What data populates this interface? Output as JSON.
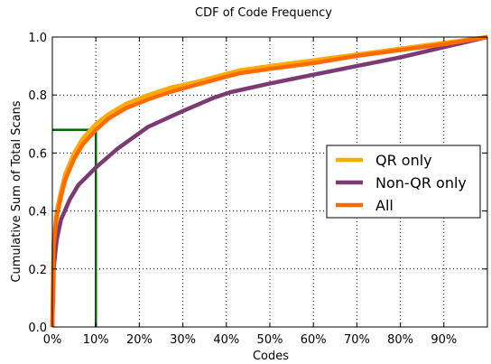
{
  "chart_data": {
    "type": "line",
    "title": "CDF of Code Frequency",
    "xlabel": "Codes",
    "ylabel": "Cumulative Sum of Total Scans",
    "xlim": [
      0,
      100
    ],
    "ylim": [
      0,
      1.0
    ],
    "x_ticks": [
      0,
      10,
      20,
      30,
      40,
      50,
      60,
      70,
      80,
      90
    ],
    "x_tick_labels": [
      "0%",
      "10%",
      "20%",
      "30%",
      "40%",
      "50%",
      "60%",
      "70%",
      "80%",
      "90%"
    ],
    "y_ticks": [
      0.0,
      0.2,
      0.4,
      0.6,
      0.8,
      1.0
    ],
    "y_tick_labels": [
      "0.0",
      "0.2",
      "0.4",
      "0.6",
      "0.8",
      "1.0"
    ],
    "grid": true,
    "legend_position": "center-right",
    "series": [
      {
        "name": "QR only",
        "color": "#ffaa00",
        "x": [
          0,
          0.3,
          1,
          2,
          3,
          5,
          7,
          10,
          13,
          17,
          22,
          27,
          33,
          38,
          43,
          50,
          60,
          70,
          80,
          90,
          100
        ],
        "y": [
          0,
          0.3,
          0.4,
          0.47,
          0.53,
          0.6,
          0.65,
          0.7,
          0.735,
          0.77,
          0.8,
          0.825,
          0.845,
          0.865,
          0.885,
          0.9,
          0.92,
          0.94,
          0.96,
          0.98,
          1.0
        ]
      },
      {
        "name": "Non-QR only",
        "color": "#7b3a73",
        "x": [
          0,
          0.3,
          1,
          2,
          4,
          6,
          8,
          10,
          15,
          22,
          30,
          37,
          41,
          50,
          60,
          70,
          80,
          90,
          100
        ],
        "y": [
          0,
          0.2,
          0.3,
          0.37,
          0.44,
          0.49,
          0.52,
          0.55,
          0.615,
          0.69,
          0.745,
          0.79,
          0.81,
          0.84,
          0.87,
          0.9,
          0.93,
          0.965,
          1.0
        ]
      },
      {
        "name": "All",
        "color": "#ff6a00",
        "x": [
          0,
          0.3,
          1,
          2,
          3,
          5,
          7,
          10,
          13,
          17,
          22,
          27,
          33,
          38,
          43,
          50,
          60,
          70,
          80,
          90,
          100
        ],
        "y": [
          0,
          0.28,
          0.38,
          0.45,
          0.51,
          0.58,
          0.63,
          0.68,
          0.72,
          0.755,
          0.785,
          0.81,
          0.835,
          0.855,
          0.875,
          0.89,
          0.91,
          0.935,
          0.955,
          0.975,
          1.0
        ]
      }
    ],
    "annotation": {
      "color": "#006600",
      "x": 10,
      "y": 0.68
    }
  }
}
